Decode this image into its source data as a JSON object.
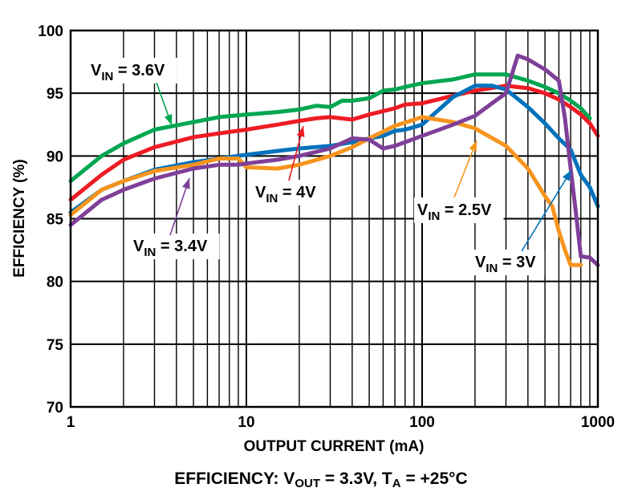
{
  "chart_data": {
    "type": "line",
    "xscale": "log",
    "xlim": [
      1,
      1000
    ],
    "ylim": [
      70,
      100
    ],
    "xlabel": "OUTPUT CURRENT (mA)",
    "ylabel": "EFFICIENCY (%)",
    "xticks": [
      1,
      10,
      100,
      1000
    ],
    "xtick_labels": [
      "1",
      "10",
      "100",
      "1000"
    ],
    "yticks": [
      70,
      75,
      80,
      85,
      90,
      95,
      100
    ],
    "ytick_labels": [
      "70",
      "75",
      "80",
      "85",
      "90",
      "95",
      "100"
    ],
    "grid": true,
    "caption": {
      "prefix": "EFFICIENCY: V",
      "sub1": "OUT",
      "mid": " = 3.3V, T",
      "sub2": "A",
      "suffix": " = +25°C"
    },
    "series": [
      {
        "name": "VIN = 3.6V",
        "label_main": "V",
        "label_sub": "IN",
        "label_rest": " = 3.6V",
        "color": "#00a651",
        "x": [
          1,
          1.5,
          2,
          3,
          5,
          7,
          10,
          15,
          20,
          25,
          30,
          35,
          40,
          50,
          60,
          70,
          80,
          100,
          150,
          200,
          300,
          400,
          500,
          600,
          700,
          800,
          900
        ],
        "y": [
          88,
          90,
          91,
          92.1,
          92.7,
          93.1,
          93.3,
          93.5,
          93.7,
          94,
          93.9,
          94.4,
          94.4,
          94.6,
          95.2,
          95.3,
          95.5,
          95.8,
          96.1,
          96.5,
          96.5,
          96,
          95.5,
          95,
          94.4,
          93.8,
          93
        ]
      },
      {
        "name": "VIN = 4V",
        "label_main": "V",
        "label_sub": "IN",
        "label_rest": " = 4V",
        "color": "#ed1c24",
        "x": [
          1,
          1.5,
          2,
          3,
          5,
          7,
          10,
          15,
          20,
          25,
          30,
          40,
          50,
          70,
          80,
          100,
          150,
          200,
          300,
          400,
          500,
          600,
          700,
          800,
          900,
          1000
        ],
        "y": [
          86.5,
          88.5,
          89.7,
          90.7,
          91.5,
          91.8,
          92.1,
          92.5,
          92.8,
          93,
          93.1,
          92.9,
          93.3,
          93.8,
          94.1,
          94.2,
          94.8,
          95.2,
          95.6,
          95.4,
          95,
          94.5,
          93.9,
          93.3,
          92.6,
          91.6
        ]
      },
      {
        "name": "VIN = 3.4V",
        "label_main": "V",
        "label_sub": "IN",
        "label_rest": " = 3.4V",
        "color": "#7f3f98",
        "x": [
          1,
          1.5,
          2,
          3,
          5,
          7,
          9,
          10,
          15,
          20,
          30,
          40,
          50,
          60,
          70,
          100,
          150,
          200,
          250,
          300,
          350,
          400,
          500,
          600,
          650,
          700,
          750,
          800,
          900,
          1000
        ],
        "y": [
          84.5,
          86.5,
          87.3,
          88.2,
          89,
          89.3,
          89.3,
          89.4,
          89.7,
          90,
          90.6,
          91.4,
          91.3,
          90.6,
          90.8,
          91.6,
          92.5,
          93.2,
          94.2,
          95,
          98,
          97.7,
          96.9,
          96,
          93,
          89,
          85.5,
          82,
          81.9,
          81.3
        ]
      },
      {
        "name": "VIN = 3V",
        "label_main": "V",
        "label_sub": "IN",
        "label_rest": " = 3V",
        "color": "#0072bc",
        "x": [
          1,
          1.5,
          2,
          3,
          5,
          7,
          10,
          15,
          20,
          30,
          40,
          50,
          60,
          70,
          80,
          90,
          100,
          150,
          200,
          250,
          300,
          400,
          500,
          600,
          700,
          800,
          900,
          1000
        ],
        "y": [
          85.5,
          87.3,
          88,
          88.9,
          89.5,
          89.8,
          90.1,
          90.4,
          90.6,
          90.8,
          91.1,
          91.4,
          91.6,
          92,
          92.1,
          92.3,
          92.5,
          94.7,
          95.6,
          95.6,
          95.3,
          93.9,
          92.6,
          91.4,
          90.5,
          88.5,
          87.5,
          86
        ]
      },
      {
        "name": "VIN = 2.5V",
        "label_main": "V",
        "label_sub": "IN",
        "label_rest": " = 2.5V",
        "color": "#f7941d",
        "x": [
          1,
          1.5,
          2,
          3,
          5,
          7,
          9,
          10,
          15,
          20,
          30,
          40,
          50,
          70,
          100,
          150,
          200,
          300,
          400,
          500,
          550,
          600,
          650,
          700,
          800
        ],
        "y": [
          85.3,
          87.3,
          88,
          88.8,
          89.3,
          89.8,
          89.8,
          89.1,
          89,
          89.3,
          90,
          90.7,
          91.4,
          92.4,
          93.1,
          92.7,
          92.2,
          90.8,
          89,
          86.8,
          86,
          84,
          82.5,
          81.3,
          81.3
        ]
      }
    ]
  }
}
